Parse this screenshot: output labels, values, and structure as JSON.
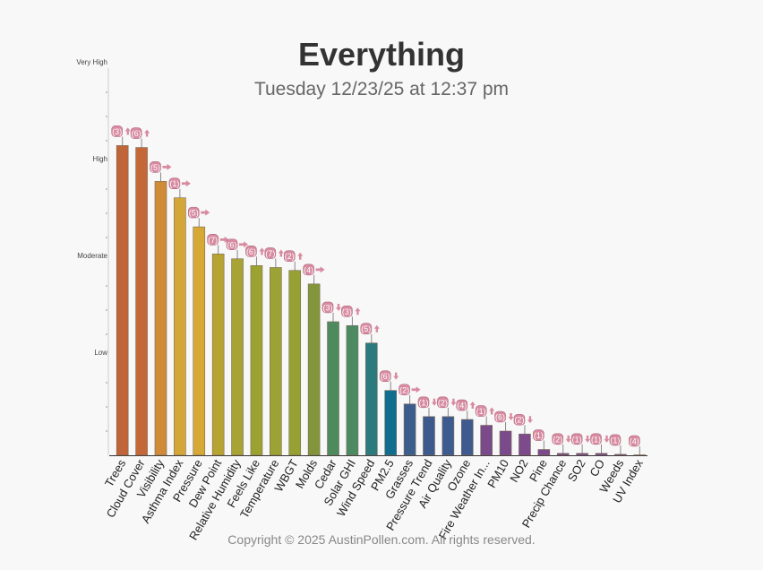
{
  "title": "Everything",
  "subtitle": "Tuesday 12/23/25 at 12:37 pm",
  "copyright": "Copyright © 2025 AustinPollen.com.  All rights reserved.",
  "chart_data": {
    "type": "bar",
    "title": "Everything",
    "subtitle": "Tuesday 12/23/25 at 12:37 pm",
    "y_levels": [
      "Low",
      "Moderate",
      "High",
      "Very High"
    ],
    "ylim": [
      0,
      4
    ],
    "grid": false,
    "legend": "none",
    "categories": [
      "Trees",
      "Cloud Cover",
      "Visibility",
      "Asthma Index",
      "Pressure",
      "Dew Point",
      "Relative Humidity",
      "Feels Like",
      "Temperature",
      "WBGT",
      "Molds",
      "Cedar",
      "Solar GHI",
      "Wind Speed",
      "PM2.5",
      "Grasses",
      "Pressure Trend",
      "Air Quality",
      "Ozone",
      "Fire Weather In...",
      "PM10",
      "NO2",
      "Pine",
      "Precip Chance",
      "SO2",
      "CO",
      "Weeds",
      "UV Index"
    ],
    "values": [
      3.2,
      3.18,
      2.83,
      2.66,
      2.36,
      2.08,
      2.03,
      1.96,
      1.94,
      1.91,
      1.77,
      1.38,
      1.34,
      1.16,
      0.67,
      0.53,
      0.4,
      0.4,
      0.37,
      0.31,
      0.25,
      0.22,
      0.06,
      0.02,
      0.02,
      0.02,
      0.01,
      0.0
    ],
    "badges": [
      "3",
      "6",
      "5",
      "1",
      "5",
      "7",
      "6",
      "6",
      "7",
      "2",
      "4",
      "3",
      "3",
      "5",
      "6",
      "2",
      "1",
      "2",
      "4",
      "1",
      "6",
      "2",
      "1",
      "2",
      "1",
      "1",
      "1",
      "4"
    ],
    "trends": [
      "up",
      "up",
      "right",
      "right",
      "right",
      "right",
      "right",
      "up",
      "up",
      "up",
      "right",
      "down",
      "up",
      "up",
      "down",
      "right",
      "down",
      "down",
      "up",
      "up",
      "down",
      "down",
      "none",
      "down",
      "down",
      "down",
      "none",
      "none"
    ],
    "colors": [
      "#c0643a",
      "#c4683a",
      "#cf8b38",
      "#d4a537",
      "#d6a836",
      "#b7a332",
      "#a7a334",
      "#9ba230",
      "#9ca234",
      "#97a133",
      "#83953a",
      "#4d8b5e",
      "#4c8a62",
      "#2b7a7e",
      "#116e8f",
      "#3c5e8c",
      "#3c5a8c",
      "#3e5b8f",
      "#3f5a8f",
      "#7a4a8a",
      "#7a4a8a",
      "#7d4a8c",
      "#7a4a8a",
      "#7a4a8a",
      "#7a4a8a",
      "#7a4a8a",
      "#7a4a8a",
      "#7a4a8a"
    ],
    "badge_color": "#d78aa0"
  }
}
